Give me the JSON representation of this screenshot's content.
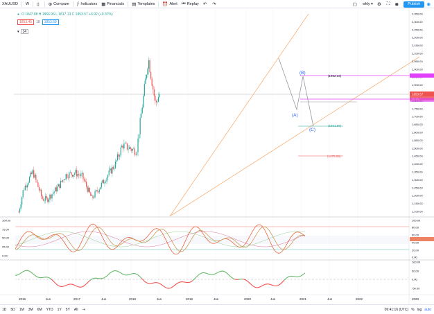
{
  "topbar": {
    "symbol": "XAUUSD",
    "interval": "W",
    "compare": "Compare",
    "indicators": "Indicators",
    "financials": "Financials",
    "templates": "Templates",
    "alert": "Alert",
    "replay": "Replay",
    "layout_name": "wkly",
    "publish": "Publish"
  },
  "legend": {
    "ohlc": "O 1847.88  H 1866.96  L 1817.13  C 1853.57  +6.92 (+0.37%)",
    "bid": "1853.45",
    "mid": "18",
    "ask": "1853.69",
    "indicator_value": "14"
  },
  "price_axis": {
    "labels": [
      "2,350.00",
      "2,300.00",
      "2,250.00",
      "2,200.00",
      "2,150.00",
      "2,100.00",
      "2,050.00",
      "2,000.00",
      "1,950.00",
      "1,900.00",
      "1,850.00",
      "1,800.00",
      "1,750.00",
      "1,700.00",
      "1,650.00",
      "1,600.00",
      "1,550.00",
      "1,500.00",
      "1,450.00",
      "1,400.00",
      "1,350.00",
      "1,300.00",
      "1,250.00",
      "1,200.00",
      "1,150.00",
      "1,100.00"
    ],
    "current_price": "1853.57",
    "current_price_sub": "00:19:"
  },
  "osc1_axis": [
    "100.00",
    "80.00",
    "60.00",
    "40.00",
    "20.00",
    "0.00"
  ],
  "osc1_left_axis": [
    "100.00",
    "75.00",
    "50.00",
    "25.00",
    "0.00"
  ],
  "osc2_axis": [
    "100.00",
    "50.00",
    "0.00",
    "-50.00"
  ],
  "time_axis": [
    "2016",
    "Jun",
    "2017",
    "Jun",
    "2018",
    "Jun",
    "2019",
    "Jun",
    "2020",
    "Jun",
    "2021",
    "Jun",
    "2022",
    "2023"
  ],
  "annotations": {
    "wave_b": "(B)",
    "wave_a": "(A)",
    "wave_c": "(C)",
    "level_high": "1962.34",
    "level_mid": "1661.96",
    "level_low": "1475.03"
  },
  "bottombar": {
    "ranges": [
      "1D",
      "5D",
      "1M",
      "3M",
      "6M",
      "YTD",
      "1Y",
      "5Y",
      "All"
    ],
    "clock": "09:41:16 (UTC)",
    "percent": "%",
    "log": "log",
    "auto": "auto"
  },
  "colors": {
    "up": "#26a69a",
    "down": "#ef5350",
    "channel": "#f7b27a",
    "magenta": "#e040fb",
    "wave": "#9598a1"
  },
  "chart_data": {
    "type": "candlestick",
    "ylim": [
      1050,
      2380
    ],
    "x": [
      "2016",
      "2017",
      "2018",
      "2019",
      "2020",
      "2021",
      "2022",
      "2023"
    ],
    "weekly_close_path": [
      {
        "x": "2016-01",
        "y": 1095
      },
      {
        "x": "2016-03",
        "y": 1240
      },
      {
        "x": "2016-07",
        "y": 1350
      },
      {
        "x": "2016-11",
        "y": 1180
      },
      {
        "x": "2017-01",
        "y": 1175
      },
      {
        "x": "2017-06",
        "y": 1260
      },
      {
        "x": "2017-09",
        "y": 1330
      },
      {
        "x": "2018-01",
        "y": 1345
      },
      {
        "x": "2018-04",
        "y": 1320
      },
      {
        "x": "2018-08",
        "y": 1180
      },
      {
        "x": "2019-01",
        "y": 1290
      },
      {
        "x": "2019-06",
        "y": 1400
      },
      {
        "x": "2019-09",
        "y": 1520
      },
      {
        "x": "2020-03",
        "y": 1480
      },
      {
        "x": "2020-05",
        "y": 1720
      },
      {
        "x": "2020-08",
        "y": 2070
      },
      {
        "x": "2020-11",
        "y": 1780
      },
      {
        "x": "2021-01",
        "y": 1853
      }
    ]
  }
}
